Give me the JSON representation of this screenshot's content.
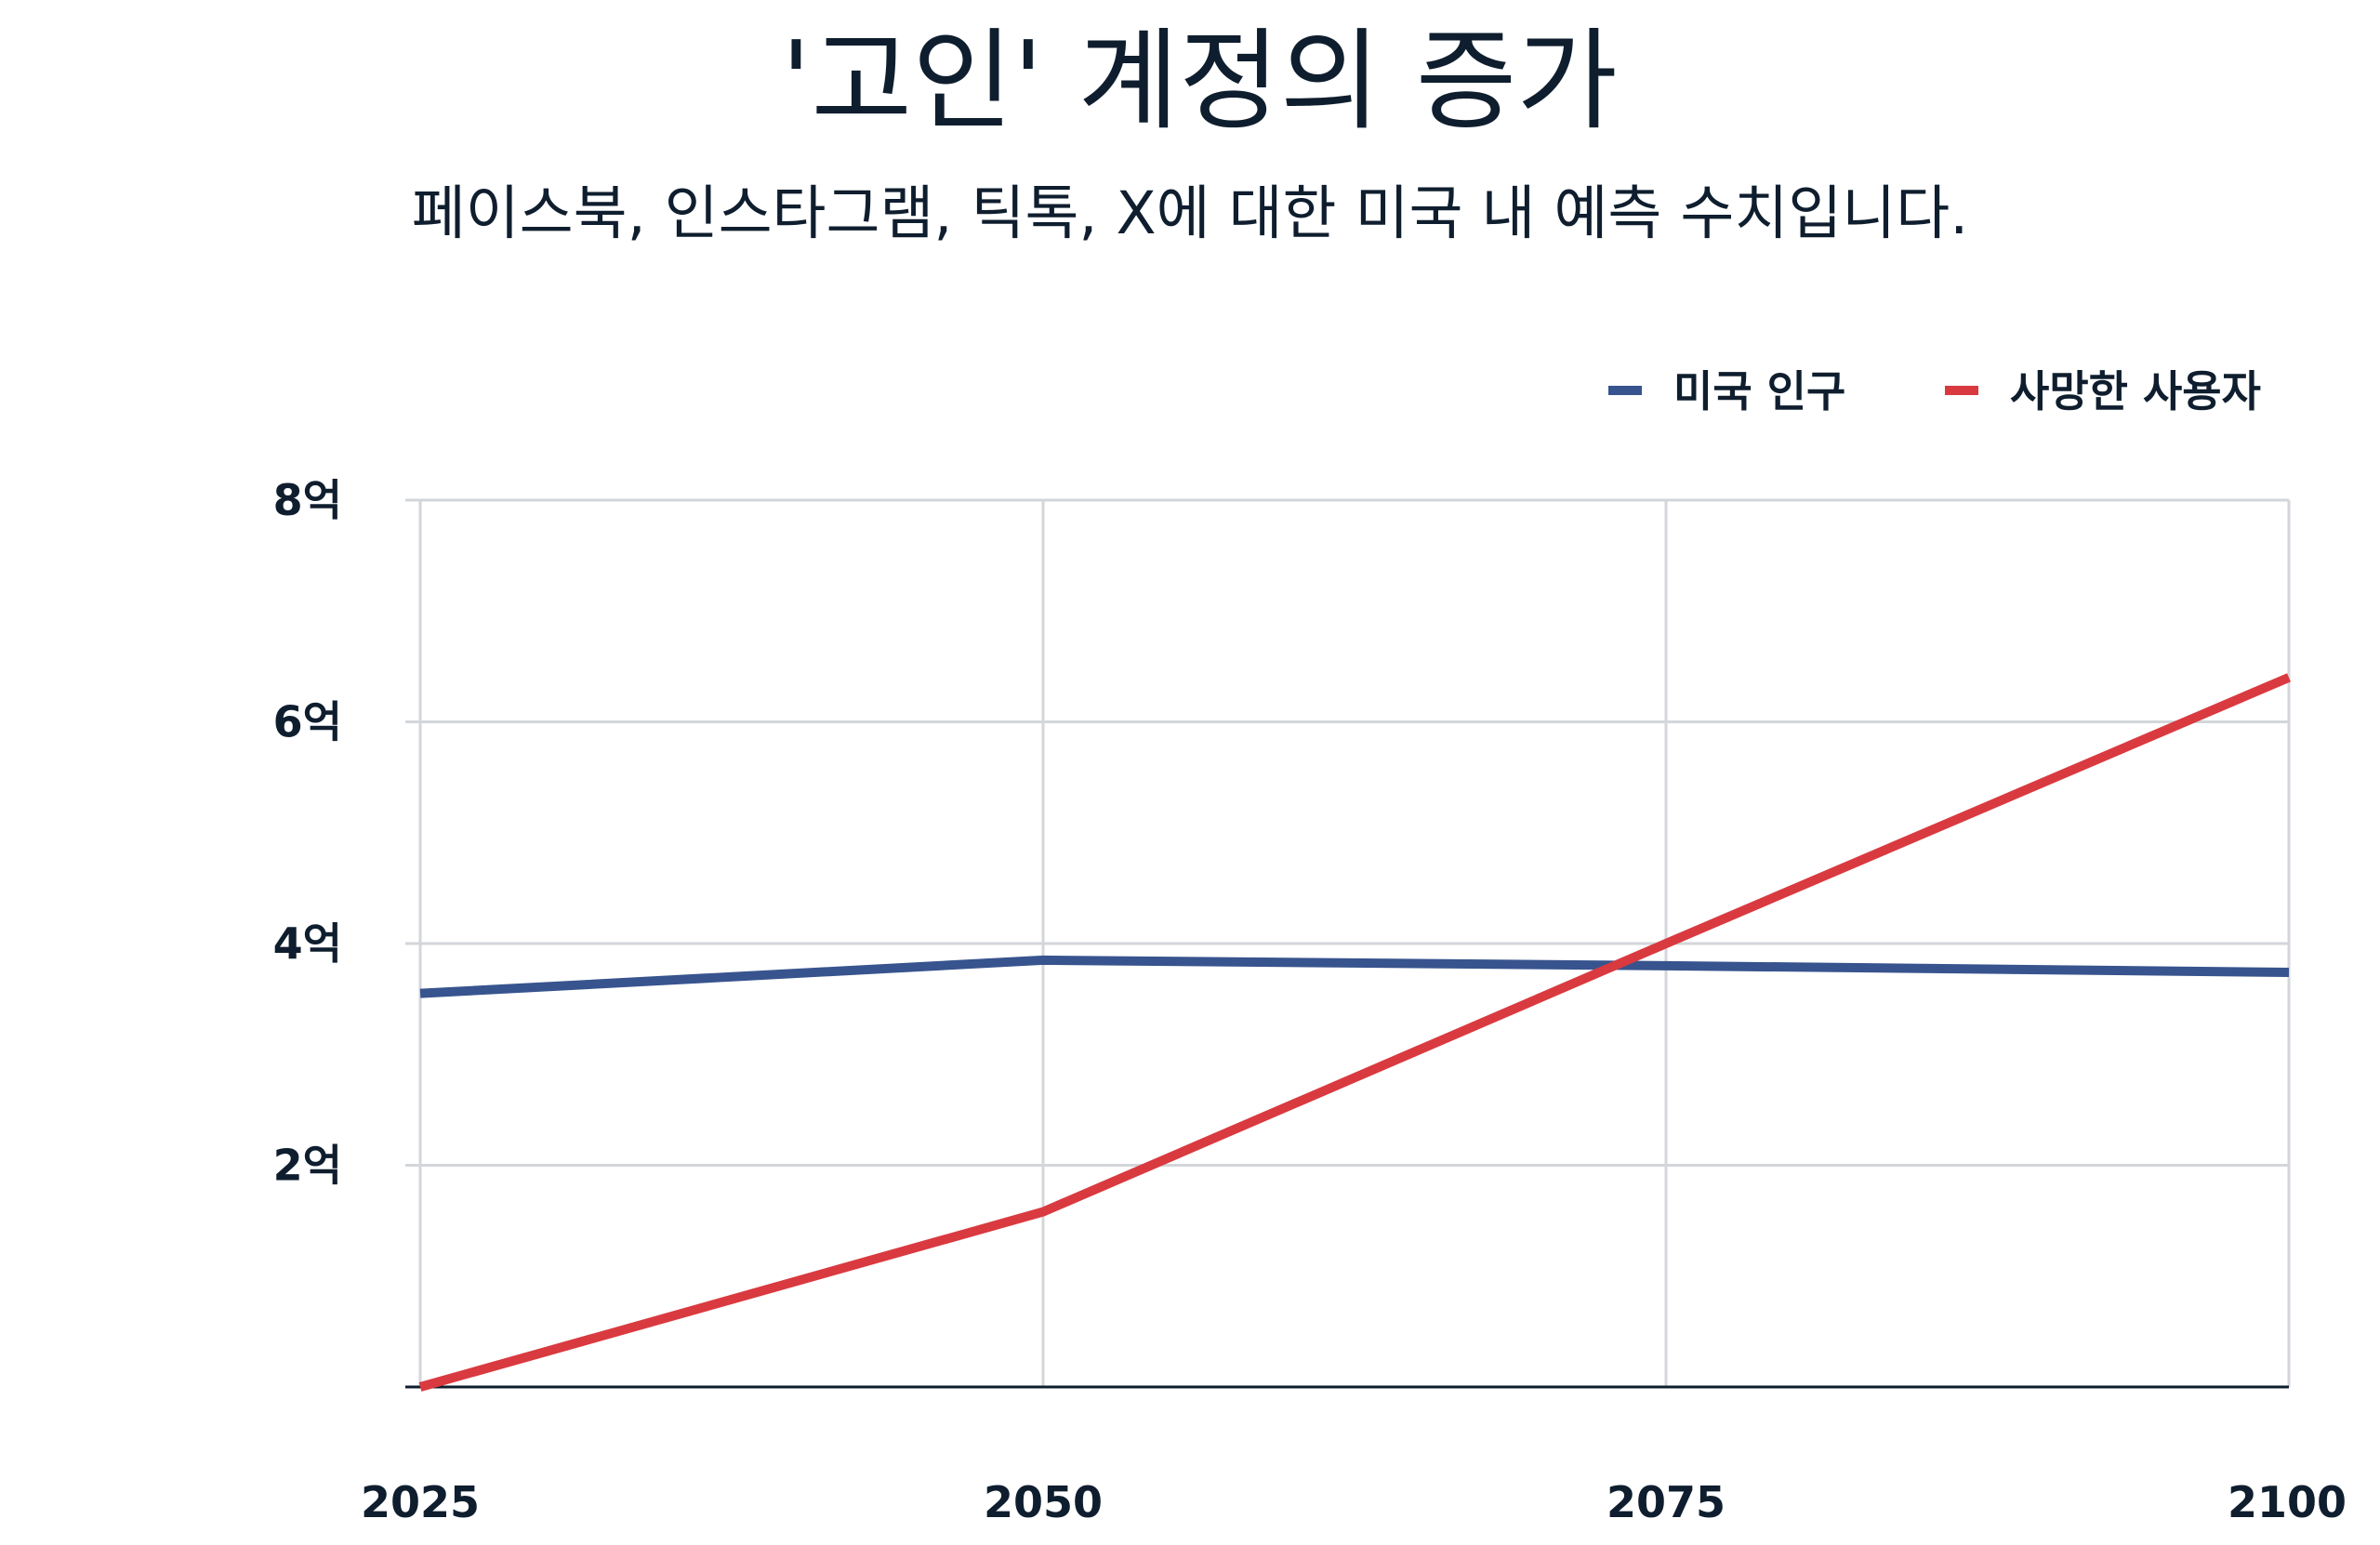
{
  "chart_data": {
    "type": "line",
    "title": "'고인' 계정의 증가",
    "subtitle": "페이스북, 인스타그램, 틱톡, X에 대한 미국 내 예측 수치입니다.",
    "xlabel": "",
    "ylabel": "",
    "x": [
      "2025",
      "2050",
      "2075",
      "2100"
    ],
    "y_ticks": [
      "2억",
      "4억",
      "6억",
      "8억"
    ],
    "y_tick_values": [
      200000000,
      400000000,
      600000000,
      800000000
    ],
    "ylim": [
      0,
      800000000
    ],
    "grid": true,
    "legend_position": "top-right",
    "series": [
      {
        "name": "미국 인구",
        "color": "#38548e",
        "values": [
          355000000,
          385000000,
          380000000,
          374000000
        ]
      },
      {
        "name": "사망한 사용자",
        "color": "#d93a40",
        "values": [
          0,
          158000000,
          400000000,
          640000000
        ]
      }
    ]
  }
}
